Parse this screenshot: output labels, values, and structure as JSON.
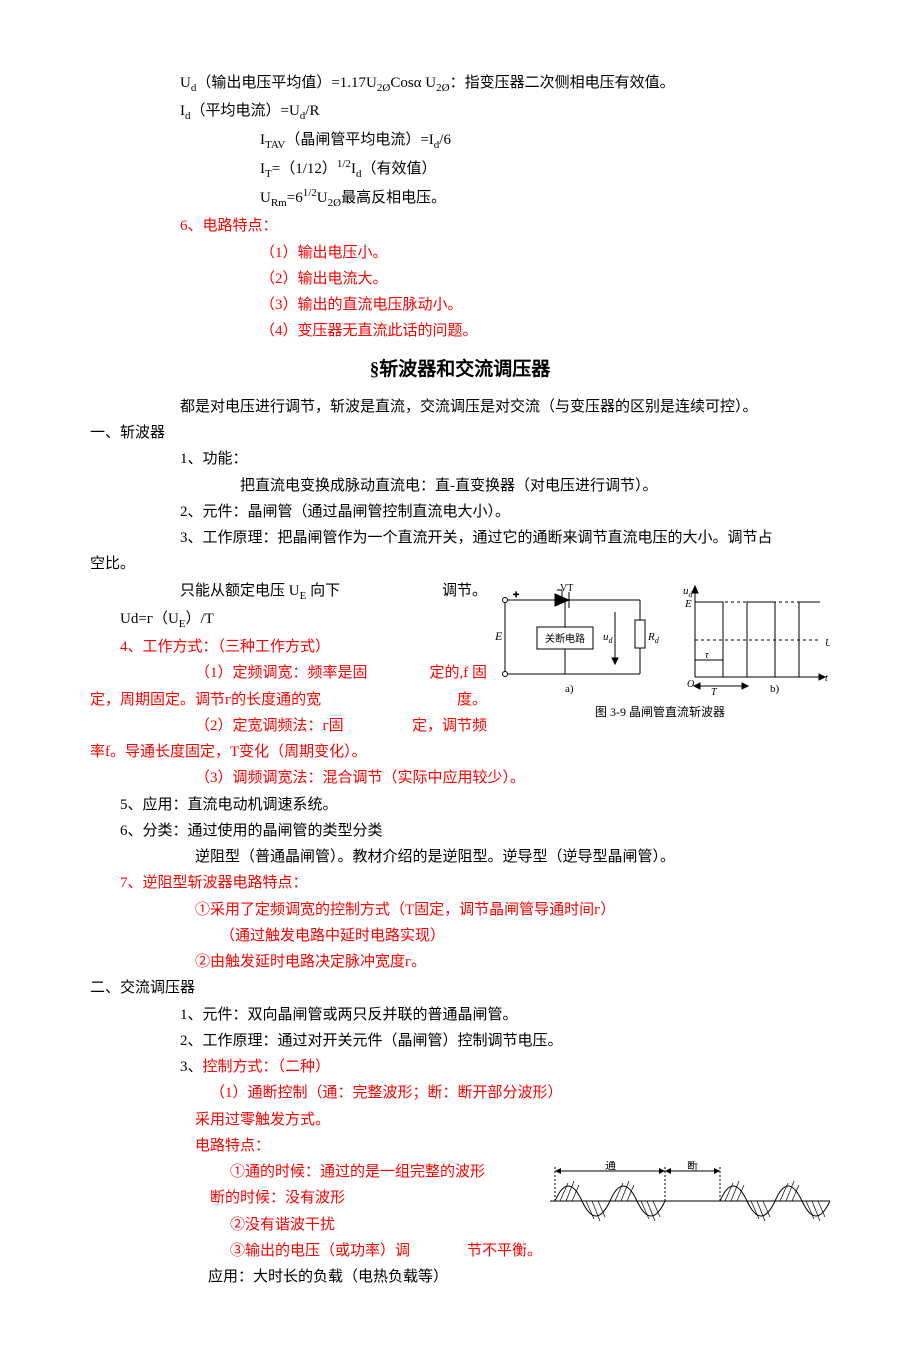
{
  "top": {
    "l1_a": "U",
    "l1_b": "d",
    "l1_c": "（输出电压平均值）=1.17U",
    "l1_d": "2Ø",
    "l1_e": "Cosα   U",
    "l1_f": "2Ø",
    "l1_g": "：指变压器二次侧相电压有效值。",
    "l2_a": "I",
    "l2_b": "d",
    "l2_c": "（平均电流）=U",
    "l2_d": "d",
    "l2_e": "/R",
    "l3_a": "I",
    "l3_b": "TAV",
    "l3_c": "（晶闸管平均电流）=I",
    "l3_d": "d",
    "l3_e": "/6",
    "l4_a": "I",
    "l4_b": "T",
    "l4_c": "=（1/12）",
    "l4_d": "1/2",
    "l4_e": "I",
    "l4_f": "d",
    "l4_g": "（有效值）",
    "l5_a": "U",
    "l5_b": "Rm",
    "l5_c": "=6",
    "l5_d": "1/2",
    "l5_e": "U",
    "l5_f": "2Ø",
    "l5_g": "最高反相电压。",
    "p6": "6、电路特点：",
    "p6_1": "（1）输出电压小。",
    "p6_2": "（2）输出电流大。",
    "p6_3": "（3）输出的直流电压脉动小。",
    "p6_4": "（4）变压器无直流此话的问题。"
  },
  "section_title": "§斩波器和交流调压器",
  "intro": "都是对电压进行调节，斩波是直流，交流调压是对交流（与变压器的区别是连续可控）。",
  "h1": "一、斩波器",
  "s1": {
    "p1": "1、功能：",
    "p1a": "把直流电变换成脉动直流电：直-直变换器（对电压进行调节）。",
    "p2": "2、元件：晶闸管（通过晶闸管控制直流电大小）。",
    "p3a": "3、工作原理：把晶闸管作为一个直流开关，通过它的通断来调节直流电压的大小。调节占",
    "p3b": "空比。",
    "p3c_a": "只能从额定电压 U",
    "p3c_b": "E",
    "p3c_c": " 向下",
    "p3c_tail": "调节。",
    "p3d_a": "Ud=г（U",
    "p3d_b": "E",
    "p3d_c": "）/T",
    "p4": "4、工作方式：（三种工作方式）",
    "p4_1a": "（1）定频调宽：频率是固",
    "p4_1b": "定的,f 固",
    "p4_1c": "定，周期固定。调节г的长度通的宽",
    "p4_1d": "度。",
    "p4_2a": "（2）定宽调频法：г固",
    "p4_2b": "定，调节频",
    "p4_2c": "率f。导通长度固定，T变化（周期变化）。",
    "p4_3": "（3）调频调宽法：混合调节（实际中应用较少）。",
    "p5": "5、应用：直流电动机调速系统。",
    "p6": "6、分类：通过使用的晶闸管的类型分类",
    "p6a": "逆阻型（普通晶闸管）。教材介绍的是逆阻型。逆导型（逆导型晶闸管）。",
    "p7": "7、逆阻型斩波器电路特点：",
    "p7_1": "①采用了定频调宽的控制方式（T固定，调节晶闸管导通时间г）",
    "p7_1a": "（通过触发电路中延时电路实现）",
    "p7_2": "②由触发延时电路决定脉冲宽度г。"
  },
  "diagram1": {
    "caption": "图 3-9  晶闸管直流斩波器",
    "label_a": "a)",
    "label_b": "b)",
    "label_E": "E",
    "label_ud": "u",
    "label_ud_sub": "d",
    "label_Rd": "R",
    "label_Rd_sub": "d",
    "label_VT": "VT",
    "label_box": "关断电路",
    "label_tau": "τ",
    "label_T": "T",
    "label_Ud": "U",
    "label_Ud_sub": "d",
    "label_O": "O",
    "label_t": "t"
  },
  "h2": "二、交流调压器",
  "s2": {
    "p1": "1、元件：双向晶闸管或两只反并联的普通晶闸管。",
    "p2": "2、工作原理：通过对开关元件（晶闸管）控制调节电压。",
    "p3": "3、控制方式：（二种）",
    "p3_1": "（1）通断控制（通：完整波形；断：断开部分波形）",
    "p3_2": "采用过零触发方式。",
    "p3_3": "电路特点：",
    "p3_3_1": "①通的时候：通过的是一组完整的波形",
    "p3_3_1b": "断的时候：没有波形",
    "p3_3_2": "②没有谐波干扰",
    "p3_3_3a": "③输出的电压（或功率）调",
    "p3_3_3b": "节不平衡。",
    "p3_4": "应用：大时长的负载（电热负载等）"
  },
  "waveform": {
    "label_on": "通",
    "label_off": "断"
  },
  "colors": {
    "red": "#ff0000",
    "black": "#000000"
  }
}
